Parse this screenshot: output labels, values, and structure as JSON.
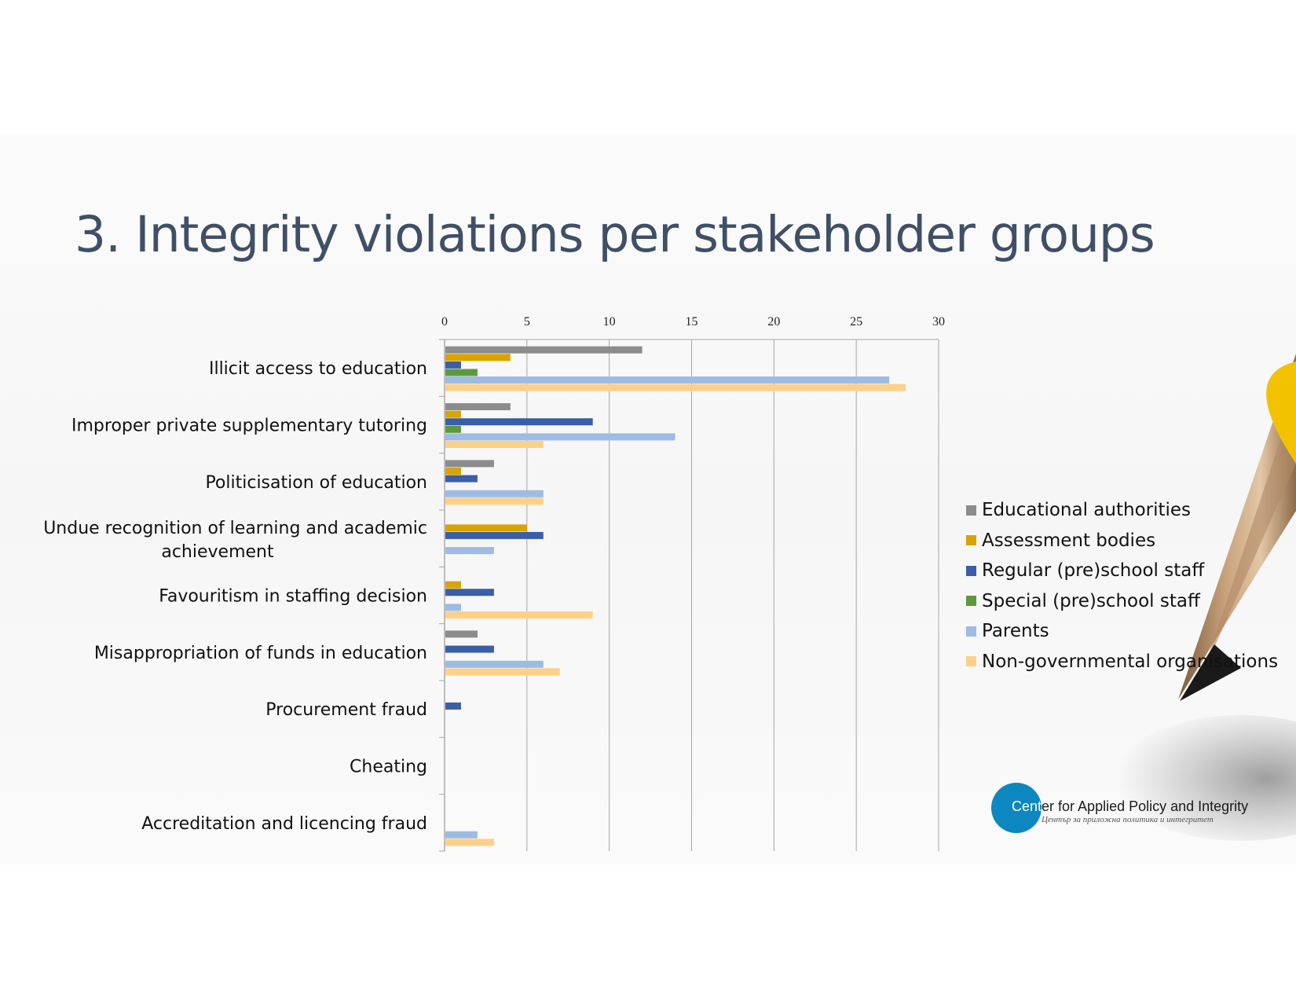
{
  "title": "3. Integrity violations per stakeholder groups",
  "colors": {
    "title": "#3f4f66",
    "grid": "#a6a6a6",
    "series": [
      "#8c8c8c",
      "#d9a300",
      "#3a5ea8",
      "#5b9a3c",
      "#9dbbe3",
      "#fdd089"
    ],
    "logo": "#0d87bf"
  },
  "chart_data": {
    "type": "bar",
    "orientation": "horizontal",
    "title": "",
    "xlabel": "",
    "ylabel": "",
    "xlim": [
      0,
      30
    ],
    "xticks": [
      "0",
      "5",
      "10",
      "15",
      "20",
      "25",
      "30"
    ],
    "grid": true,
    "legend_position": "right",
    "categories": [
      "Illicit access to education",
      "Improper private supplementary tutoring",
      "Politicisation of education",
      "Undue recognition of learning and academic achievement",
      "Favouritism in staffing decision",
      "Misappropriation of funds in education",
      "Procurement fraud",
      "Cheating",
      "Accreditation and licencing fraud"
    ],
    "series": [
      {
        "name": "Educational authorities",
        "values": [
          12,
          4,
          3,
          0,
          0,
          2,
          0,
          0,
          0
        ]
      },
      {
        "name": "Assessment bodies",
        "values": [
          4,
          1,
          1,
          5,
          1,
          0,
          0,
          0,
          0
        ]
      },
      {
        "name": "Regular (pre)school staff",
        "values": [
          1,
          9,
          2,
          6,
          3,
          3,
          1,
          0,
          0
        ]
      },
      {
        "name": "Special (pre)school staff",
        "values": [
          2,
          1,
          0,
          0,
          0,
          0,
          0,
          0,
          0
        ]
      },
      {
        "name": "Parents",
        "values": [
          27,
          14,
          6,
          3,
          1,
          6,
          0,
          0,
          2
        ]
      },
      {
        "name": "Non-governmental organisations",
        "values": [
          28,
          6,
          6,
          0,
          9,
          7,
          0,
          0,
          3
        ]
      }
    ]
  },
  "logo": {
    "name_first": "Cent",
    "name_rest": "er for Applied Policy and Integrity",
    "subtitle": "Център за приложна политика и интегритет"
  },
  "icons": {
    "pencil": "pencil-illustration",
    "logo": "org-logo-circle"
  }
}
